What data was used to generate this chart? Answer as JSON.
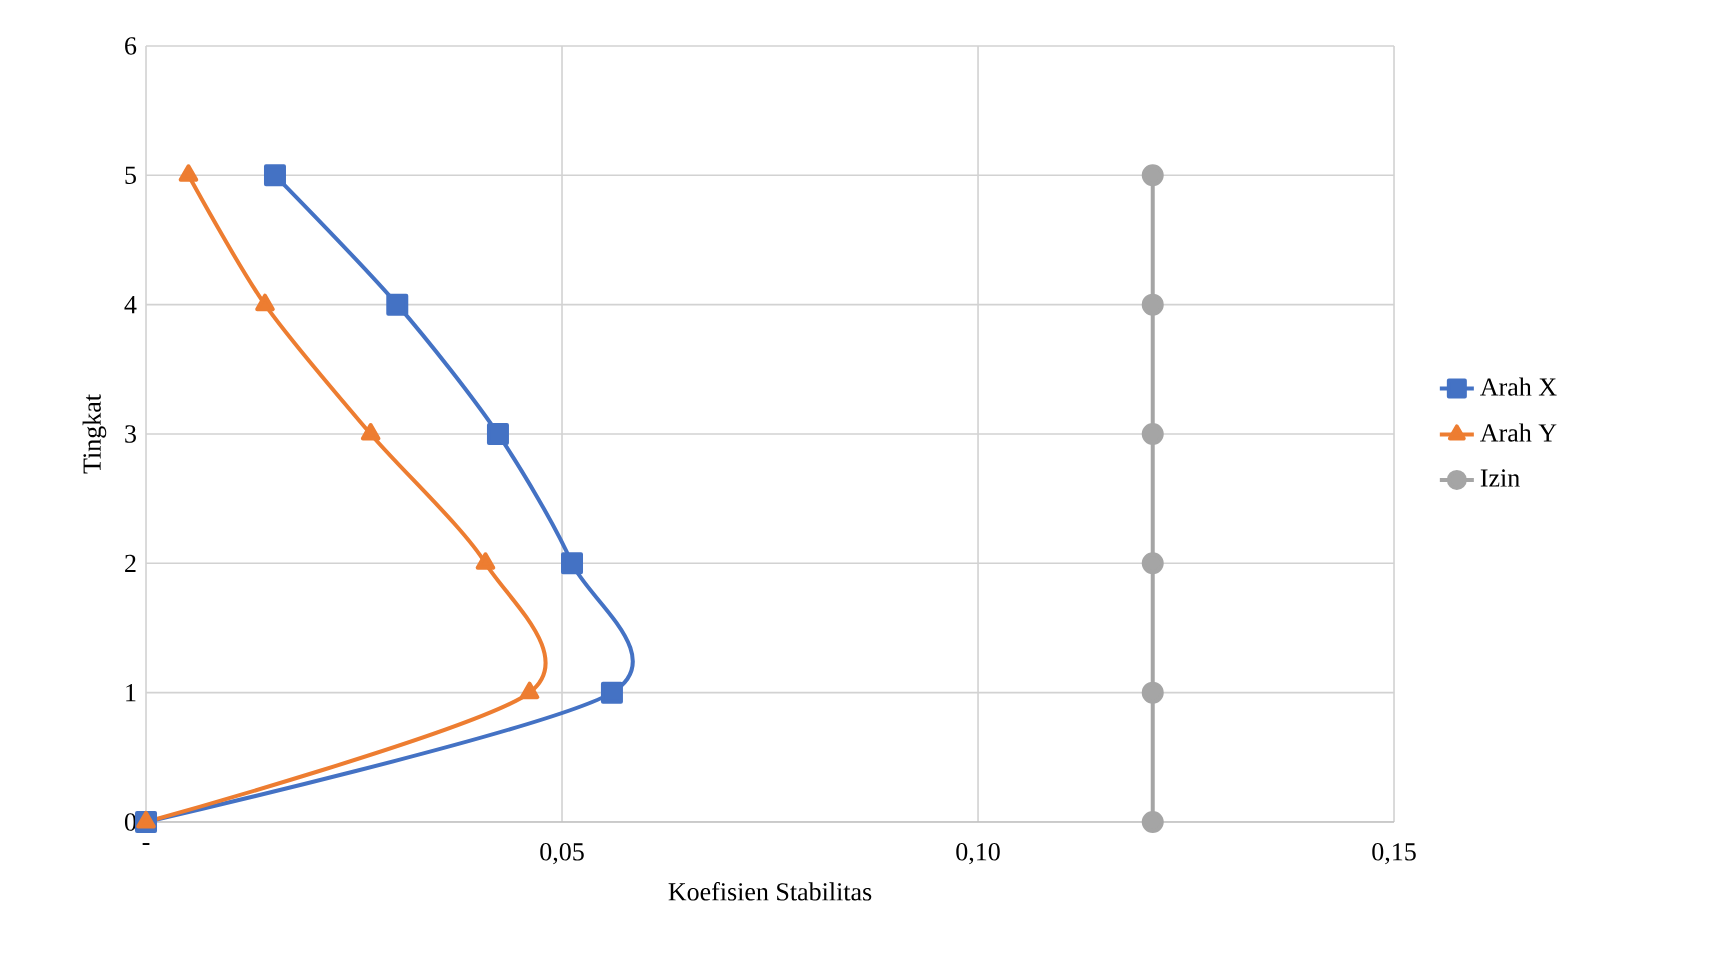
{
  "chart_data": {
    "type": "line",
    "xlabel": "Koefisien Stabilitas",
    "ylabel": "Tingkat",
    "xlim": [
      0,
      0.15
    ],
    "ylim": [
      0,
      6
    ],
    "xticks": [
      {
        "value": 0,
        "label": "-"
      },
      {
        "value": 0.05,
        "label": "0,05"
      },
      {
        "value": 0.1,
        "label": "0,10"
      },
      {
        "value": 0.15,
        "label": "0,15"
      }
    ],
    "yticks": [
      0,
      1,
      2,
      3,
      4,
      5,
      6
    ],
    "grid": true,
    "legend": "right",
    "series": [
      {
        "name": "Arah X",
        "color": "#4472c4",
        "marker": "square",
        "x": [
          0,
          0.056,
          0.0512,
          0.0423,
          0.0302,
          0.0155
        ],
        "values": [
          0,
          1,
          2,
          3,
          4,
          5
        ]
      },
      {
        "name": "Arah Y",
        "color": "#ed7d31",
        "marker": "triangle",
        "x": [
          0,
          0.0461,
          0.0408,
          0.027,
          0.0143,
          0.0051
        ],
        "values": [
          0,
          1,
          2,
          3,
          4,
          5
        ]
      },
      {
        "name": "Izin",
        "color": "#a5a5a5",
        "marker": "circle",
        "x": [
          0.121,
          0.121,
          0.121,
          0.121,
          0.121,
          0.121
        ],
        "values": [
          0,
          1,
          2,
          3,
          4,
          5
        ]
      }
    ]
  }
}
